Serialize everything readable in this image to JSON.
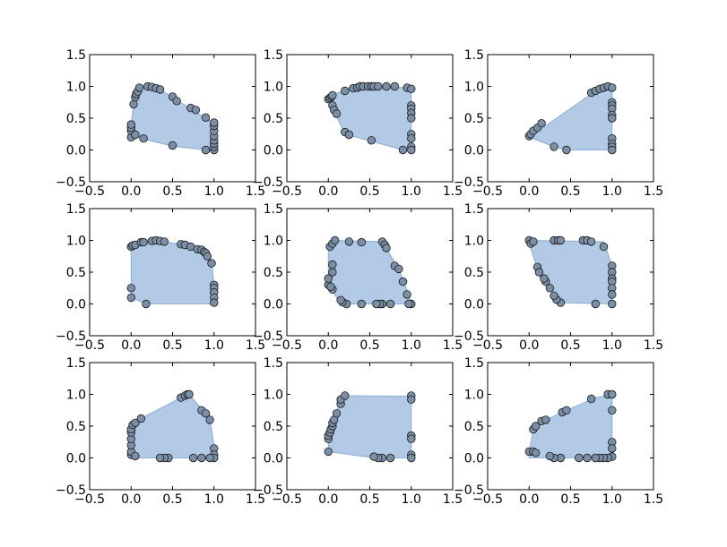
{
  "chart_data": [
    {
      "type": "scatter",
      "xlim": [
        -0.5,
        1.5
      ],
      "ylim": [
        -0.5,
        1.5
      ],
      "x_ticks": [
        "−0.5",
        "0.0",
        "0.5",
        "1.0",
        "1.5"
      ],
      "y_ticks": [
        "−0.5",
        "0.0",
        "0.5",
        "1.0",
        "1.5"
      ],
      "hull": [
        [
          0.0,
          0.2
        ],
        [
          0.0,
          0.4
        ],
        [
          0.03,
          0.72
        ],
        [
          0.05,
          0.87
        ],
        [
          0.1,
          0.98
        ],
        [
          0.35,
          0.95
        ],
        [
          0.9,
          0.5
        ],
        [
          1.0,
          0.43
        ],
        [
          1.0,
          0.0
        ],
        [
          0.9,
          0.0
        ],
        [
          0.5,
          0.06
        ],
        [
          0.15,
          0.17
        ],
        [
          0.03,
          0.22
        ]
      ],
      "points": [
        [
          0.0,
          0.2
        ],
        [
          0.0,
          0.3
        ],
        [
          0.0,
          0.35
        ],
        [
          0.0,
          0.4
        ],
        [
          0.03,
          0.72
        ],
        [
          0.05,
          0.83
        ],
        [
          0.06,
          0.88
        ],
        [
          0.08,
          0.92
        ],
        [
          0.1,
          0.98
        ],
        [
          0.2,
          1.0
        ],
        [
          0.25,
          0.99
        ],
        [
          0.3,
          0.97
        ],
        [
          0.35,
          0.95
        ],
        [
          0.5,
          0.84
        ],
        [
          0.55,
          0.77
        ],
        [
          0.72,
          0.66
        ],
        [
          0.78,
          0.63
        ],
        [
          0.9,
          0.51
        ],
        [
          0.15,
          0.18
        ],
        [
          0.5,
          0.07
        ],
        [
          0.9,
          0.0
        ],
        [
          1.0,
          0.0
        ],
        [
          1.0,
          0.05
        ],
        [
          1.0,
          0.1
        ],
        [
          1.0,
          0.15
        ],
        [
          1.0,
          0.22
        ],
        [
          1.0,
          0.3
        ],
        [
          1.0,
          0.38
        ],
        [
          1.0,
          0.43
        ],
        [
          0.05,
          0.24
        ]
      ]
    },
    {
      "type": "scatter",
      "xlim": [
        -0.5,
        1.5
      ],
      "ylim": [
        -0.5,
        1.5
      ],
      "x_ticks": [
        "−0.5",
        "0.0",
        "0.5",
        "1.0",
        "1.5"
      ],
      "y_ticks": [
        "−0.5",
        "0.0",
        "0.5",
        "1.0",
        "1.5"
      ],
      "hull": [
        [
          0.0,
          0.85
        ],
        [
          0.05,
          0.88
        ],
        [
          0.2,
          0.93
        ],
        [
          0.35,
          1.0
        ],
        [
          1.0,
          0.98
        ],
        [
          1.0,
          0.0
        ],
        [
          0.9,
          0.0
        ],
        [
          0.2,
          0.25
        ],
        [
          0.08,
          0.58
        ],
        [
          0.0,
          0.8
        ]
      ],
      "points": [
        [
          0.0,
          0.8
        ],
        [
          0.02,
          0.82
        ],
        [
          0.04,
          0.84
        ],
        [
          0.05,
          0.86
        ],
        [
          0.05,
          0.7
        ],
        [
          0.07,
          0.63
        ],
        [
          0.1,
          0.57
        ],
        [
          0.2,
          0.28
        ],
        [
          0.25,
          0.24
        ],
        [
          0.2,
          0.93
        ],
        [
          0.3,
          0.97
        ],
        [
          0.35,
          0.98
        ],
        [
          0.38,
          1.0
        ],
        [
          0.42,
          1.0
        ],
        [
          0.48,
          1.0
        ],
        [
          0.52,
          1.0
        ],
        [
          0.55,
          1.0
        ],
        [
          0.6,
          1.0
        ],
        [
          0.7,
          1.0
        ],
        [
          0.8,
          1.0
        ],
        [
          0.95,
          0.98
        ],
        [
          1.0,
          0.96
        ],
        [
          1.0,
          0.7
        ],
        [
          1.0,
          0.65
        ],
        [
          1.0,
          0.58
        ],
        [
          1.0,
          0.5
        ],
        [
          1.0,
          0.25
        ],
        [
          1.0,
          0.18
        ],
        [
          1.0,
          0.05
        ],
        [
          1.0,
          0.0
        ],
        [
          0.9,
          0.0
        ],
        [
          0.52,
          0.15
        ]
      ]
    },
    {
      "type": "scatter",
      "xlim": [
        -0.5,
        1.5
      ],
      "ylim": [
        -0.5,
        1.5
      ],
      "x_ticks": [
        "−0.5",
        "0.0",
        "0.5",
        "1.0",
        "1.5"
      ],
      "y_ticks": [
        "−0.5",
        "0.0",
        "0.5",
        "1.0",
        "1.5"
      ],
      "hull": [
        [
          0.0,
          0.2
        ],
        [
          0.75,
          0.88
        ],
        [
          0.9,
          0.98
        ],
        [
          1.0,
          0.98
        ],
        [
          1.0,
          0.0
        ],
        [
          0.45,
          0.0
        ],
        [
          0.3,
          0.05
        ],
        [
          0.0,
          0.2
        ]
      ],
      "points": [
        [
          0.0,
          0.22
        ],
        [
          0.02,
          0.25
        ],
        [
          0.05,
          0.3
        ],
        [
          0.1,
          0.35
        ],
        [
          0.15,
          0.42
        ],
        [
          0.75,
          0.9
        ],
        [
          0.8,
          0.93
        ],
        [
          0.85,
          0.96
        ],
        [
          0.9,
          0.98
        ],
        [
          0.95,
          1.0
        ],
        [
          1.0,
          0.98
        ],
        [
          1.0,
          0.75
        ],
        [
          1.0,
          0.7
        ],
        [
          1.0,
          0.65
        ],
        [
          1.0,
          0.55
        ],
        [
          1.0,
          0.5
        ],
        [
          1.0,
          0.18
        ],
        [
          1.0,
          0.1
        ],
        [
          1.0,
          0.05
        ],
        [
          1.0,
          0.0
        ],
        [
          0.3,
          0.05
        ],
        [
          0.45,
          0.0
        ]
      ]
    },
    {
      "type": "scatter",
      "xlim": [
        -0.5,
        1.5
      ],
      "ylim": [
        -0.5,
        1.5
      ],
      "x_ticks": [
        "−0.5",
        "0.0",
        "0.5",
        "1.0",
        "1.5"
      ],
      "y_ticks": [
        "−0.5",
        "0.0",
        "0.5",
        "1.0",
        "1.5"
      ],
      "hull": [
        [
          0.0,
          0.9
        ],
        [
          0.12,
          0.97
        ],
        [
          0.3,
          1.0
        ],
        [
          0.65,
          0.93
        ],
        [
          0.88,
          0.82
        ],
        [
          0.97,
          0.65
        ],
        [
          1.0,
          0.3
        ],
        [
          1.0,
          0.0
        ],
        [
          0.18,
          0.0
        ],
        [
          0.0,
          0.1
        ],
        [
          0.0,
          0.9
        ]
      ],
      "points": [
        [
          0.0,
          0.9
        ],
        [
          0.02,
          0.92
        ],
        [
          0.05,
          0.93
        ],
        [
          0.12,
          0.97
        ],
        [
          0.15,
          0.97
        ],
        [
          0.25,
          0.99
        ],
        [
          0.3,
          1.0
        ],
        [
          0.35,
          0.99
        ],
        [
          0.4,
          0.98
        ],
        [
          0.6,
          0.94
        ],
        [
          0.65,
          0.93
        ],
        [
          0.72,
          0.9
        ],
        [
          0.8,
          0.86
        ],
        [
          0.85,
          0.85
        ],
        [
          0.88,
          0.82
        ],
        [
          0.9,
          0.8
        ],
        [
          0.92,
          0.75
        ],
        [
          0.97,
          0.64
        ],
        [
          1.0,
          0.3
        ],
        [
          1.0,
          0.25
        ],
        [
          1.0,
          0.18
        ],
        [
          1.0,
          0.1
        ],
        [
          1.0,
          0.02
        ],
        [
          0.0,
          0.25
        ],
        [
          0.0,
          0.1
        ],
        [
          0.18,
          0.0
        ]
      ]
    },
    {
      "type": "scatter",
      "xlim": [
        -0.5,
        1.5
      ],
      "ylim": [
        -0.5,
        1.5
      ],
      "x_ticks": [
        "−0.5",
        "0.0",
        "0.5",
        "1.0",
        "1.5"
      ],
      "y_ticks": [
        "−0.5",
        "0.0",
        "0.5",
        "1.0",
        "1.5"
      ],
      "hull": [
        [
          0.0,
          0.3
        ],
        [
          0.0,
          0.9
        ],
        [
          0.08,
          1.0
        ],
        [
          0.65,
          0.98
        ],
        [
          0.85,
          0.55
        ],
        [
          0.97,
          0.15
        ],
        [
          1.0,
          0.0
        ],
        [
          0.15,
          0.0
        ],
        [
          0.05,
          0.2
        ]
      ],
      "points": [
        [
          0.0,
          0.3
        ],
        [
          0.0,
          0.4
        ],
        [
          0.02,
          0.9
        ],
        [
          0.05,
          0.95
        ],
        [
          0.08,
          1.0
        ],
        [
          0.25,
          0.98
        ],
        [
          0.4,
          0.97
        ],
        [
          0.65,
          0.98
        ],
        [
          0.68,
          0.93
        ],
        [
          0.7,
          0.88
        ],
        [
          0.8,
          0.6
        ],
        [
          0.85,
          0.55
        ],
        [
          0.9,
          0.35
        ],
        [
          0.95,
          0.15
        ],
        [
          1.0,
          0.0
        ],
        [
          0.97,
          0.0
        ],
        [
          0.75,
          0.0
        ],
        [
          0.65,
          0.0
        ],
        [
          0.62,
          0.0
        ],
        [
          0.58,
          0.0
        ],
        [
          0.4,
          0.0
        ],
        [
          0.22,
          0.0
        ],
        [
          0.17,
          0.03
        ],
        [
          0.15,
          0.06
        ],
        [
          0.05,
          0.23
        ],
        [
          0.03,
          0.27
        ],
        [
          0.05,
          0.5
        ],
        [
          0.05,
          0.62
        ]
      ]
    },
    {
      "type": "scatter",
      "xlim": [
        -0.5,
        1.5
      ],
      "ylim": [
        -0.5,
        1.5
      ],
      "x_ticks": [
        "−0.5",
        "0.0",
        "0.5",
        "1.0",
        "1.5"
      ],
      "y_ticks": [
        "−0.5",
        "0.0",
        "0.5",
        "1.0",
        "1.5"
      ],
      "hull": [
        [
          0.0,
          1.0
        ],
        [
          0.9,
          0.98
        ],
        [
          1.0,
          0.6
        ],
        [
          1.0,
          0.0
        ],
        [
          0.38,
          0.02
        ],
        [
          0.1,
          0.55
        ],
        [
          0.0,
          0.95
        ]
      ],
      "points": [
        [
          0.0,
          1.0
        ],
        [
          0.02,
          0.95
        ],
        [
          0.05,
          0.98
        ],
        [
          0.3,
          1.0
        ],
        [
          0.35,
          1.0
        ],
        [
          0.38,
          1.0
        ],
        [
          0.65,
          1.0
        ],
        [
          0.7,
          1.0
        ],
        [
          0.75,
          0.98
        ],
        [
          0.9,
          0.9
        ],
        [
          1.0,
          0.6
        ],
        [
          1.0,
          0.5
        ],
        [
          1.0,
          0.4
        ],
        [
          1.0,
          0.35
        ],
        [
          1.0,
          0.25
        ],
        [
          1.0,
          0.15
        ],
        [
          1.0,
          0.0
        ],
        [
          0.8,
          0.0
        ],
        [
          0.38,
          0.02
        ],
        [
          0.33,
          0.07
        ],
        [
          0.3,
          0.13
        ],
        [
          0.25,
          0.25
        ],
        [
          0.2,
          0.35
        ],
        [
          0.18,
          0.4
        ],
        [
          0.1,
          0.58
        ],
        [
          0.12,
          0.5
        ]
      ]
    },
    {
      "type": "scatter",
      "xlim": [
        -0.5,
        1.5
      ],
      "ylim": [
        -0.5,
        1.5
      ],
      "x_ticks": [
        "−0.5",
        "0.0",
        "0.5",
        "1.0",
        "1.5"
      ],
      "y_ticks": [
        "−0.5",
        "0.0",
        "0.5",
        "1.0",
        "1.5"
      ],
      "hull": [
        [
          0.0,
          0.05
        ],
        [
          0.0,
          0.55
        ],
        [
          0.12,
          0.62
        ],
        [
          0.6,
          0.95
        ],
        [
          0.7,
          1.0
        ],
        [
          0.95,
          0.62
        ],
        [
          1.0,
          0.2
        ],
        [
          1.0,
          0.0
        ],
        [
          0.0,
          0.0
        ]
      ],
      "points": [
        [
          0.0,
          0.05
        ],
        [
          0.0,
          0.1
        ],
        [
          0.0,
          0.2
        ],
        [
          0.0,
          0.3
        ],
        [
          0.0,
          0.4
        ],
        [
          0.0,
          0.45
        ],
        [
          0.02,
          0.52
        ],
        [
          0.05,
          0.55
        ],
        [
          0.12,
          0.62
        ],
        [
          0.6,
          0.95
        ],
        [
          0.65,
          0.98
        ],
        [
          0.68,
          1.0
        ],
        [
          0.7,
          1.0
        ],
        [
          0.85,
          0.75
        ],
        [
          0.9,
          0.7
        ],
        [
          0.95,
          0.6
        ],
        [
          1.0,
          0.15
        ],
        [
          1.0,
          0.05
        ],
        [
          1.0,
          0.0
        ],
        [
          0.95,
          0.0
        ],
        [
          0.85,
          0.0
        ],
        [
          0.75,
          0.0
        ],
        [
          0.45,
          0.0
        ],
        [
          0.4,
          0.0
        ],
        [
          0.35,
          0.0
        ],
        [
          0.05,
          0.03
        ]
      ]
    },
    {
      "type": "scatter",
      "xlim": [
        -0.5,
        1.5
      ],
      "ylim": [
        -0.5,
        1.5
      ],
      "x_ticks": [
        "−0.5",
        "0.0",
        "0.5",
        "1.0",
        "1.5"
      ],
      "y_ticks": [
        "−0.5",
        "0.0",
        "0.5",
        "1.0",
        "1.5"
      ],
      "hull": [
        [
          0.0,
          0.1
        ],
        [
          0.0,
          0.3
        ],
        [
          0.1,
          0.72
        ],
        [
          0.15,
          0.98
        ],
        [
          1.0,
          0.97
        ],
        [
          1.0,
          0.0
        ],
        [
          0.55,
          0.0
        ],
        [
          0.0,
          0.1
        ]
      ],
      "points": [
        [
          0.0,
          0.1
        ],
        [
          0.0,
          0.3
        ],
        [
          0.0,
          0.35
        ],
        [
          0.02,
          0.4
        ],
        [
          0.03,
          0.45
        ],
        [
          0.05,
          0.5
        ],
        [
          0.05,
          0.55
        ],
        [
          0.07,
          0.6
        ],
        [
          0.1,
          0.7
        ],
        [
          0.15,
          0.85
        ],
        [
          0.15,
          0.92
        ],
        [
          0.2,
          0.98
        ],
        [
          1.0,
          0.98
        ],
        [
          1.0,
          0.92
        ],
        [
          1.0,
          0.35
        ],
        [
          1.0,
          0.3
        ],
        [
          1.0,
          0.05
        ],
        [
          1.0,
          0.0
        ],
        [
          0.75,
          0.0
        ],
        [
          0.65,
          0.0
        ],
        [
          0.6,
          0.0
        ],
        [
          0.55,
          0.02
        ]
      ]
    },
    {
      "type": "scatter",
      "xlim": [
        -0.5,
        1.5
      ],
      "ylim": [
        -0.5,
        1.5
      ],
      "x_ticks": [
        "−0.5",
        "0.0",
        "0.5",
        "1.0",
        "1.5"
      ],
      "y_ticks": [
        "−0.5",
        "0.0",
        "0.5",
        "1.0",
        "1.5"
      ],
      "hull": [
        [
          0.0,
          0.1
        ],
        [
          0.05,
          0.45
        ],
        [
          0.2,
          0.6
        ],
        [
          0.4,
          0.72
        ],
        [
          0.8,
          0.95
        ],
        [
          1.0,
          1.0
        ],
        [
          1.0,
          0.0
        ],
        [
          0.0,
          0.0
        ]
      ],
      "points": [
        [
          0.0,
          0.1
        ],
        [
          0.05,
          0.1
        ],
        [
          0.08,
          0.08
        ],
        [
          0.05,
          0.45
        ],
        [
          0.08,
          0.5
        ],
        [
          0.15,
          0.58
        ],
        [
          0.2,
          0.6
        ],
        [
          0.4,
          0.72
        ],
        [
          0.45,
          0.75
        ],
        [
          0.75,
          0.93
        ],
        [
          0.95,
          1.0
        ],
        [
          1.0,
          1.0
        ],
        [
          1.0,
          0.75
        ],
        [
          1.0,
          0.25
        ],
        [
          1.0,
          0.15
        ],
        [
          1.0,
          0.02
        ],
        [
          0.95,
          0.0
        ],
        [
          0.9,
          0.0
        ],
        [
          0.85,
          0.0
        ],
        [
          0.8,
          0.0
        ],
        [
          0.7,
          0.0
        ],
        [
          0.6,
          0.0
        ],
        [
          0.38,
          0.0
        ],
        [
          0.3,
          0.0
        ],
        [
          0.25,
          0.03
        ]
      ]
    }
  ]
}
